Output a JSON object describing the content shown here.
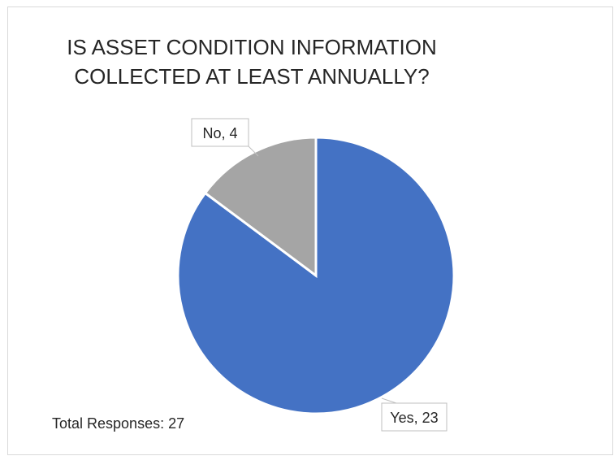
{
  "chart_data": {
    "type": "pie",
    "title_lines": [
      "IS ASSET CONDITION INFORMATION",
      "COLLECTED AT LEAST ANNUALLY?"
    ],
    "slices": [
      {
        "label": "Yes, 23",
        "value": 23,
        "color": "#4472C4"
      },
      {
        "label": "No, 4",
        "value": 4,
        "color": "#A5A5A5"
      }
    ],
    "annotation": "Total Responses: 27"
  }
}
